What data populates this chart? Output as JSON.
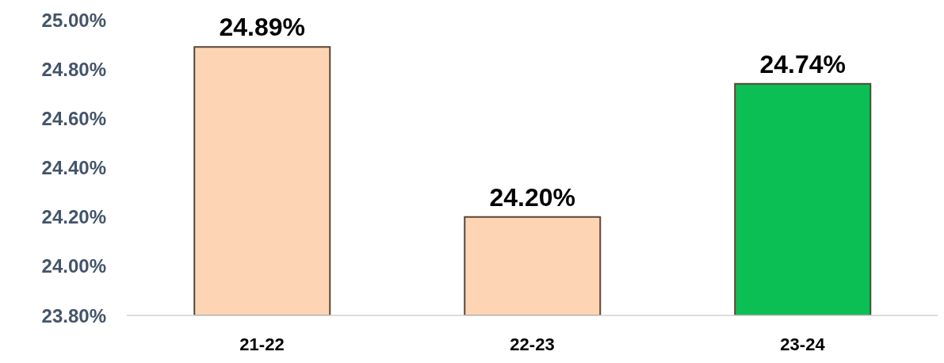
{
  "chart_data": {
    "type": "bar",
    "categories": [
      "21-22",
      "22-23",
      "23-24"
    ],
    "values": [
      24.89,
      24.2,
      24.74
    ],
    "colors": [
      "#fdd5b4",
      "#fdd5b4",
      "#0bbf55"
    ],
    "value_labels": [
      "24.89%",
      "24.20%",
      "24.74%"
    ],
    "ylim": [
      23.8,
      25.0
    ],
    "yticks": [
      {
        "value": 23.8,
        "label": "23.80%"
      },
      {
        "value": 24.0,
        "label": "24.00%"
      },
      {
        "value": 24.2,
        "label": "24.20%"
      },
      {
        "value": 24.4,
        "label": "24.40%"
      },
      {
        "value": 24.6,
        "label": "24.60%"
      },
      {
        "value": 24.8,
        "label": "24.80%"
      },
      {
        "value": 25.0,
        "label": "25.00%"
      }
    ],
    "grid": false,
    "legend": false
  }
}
